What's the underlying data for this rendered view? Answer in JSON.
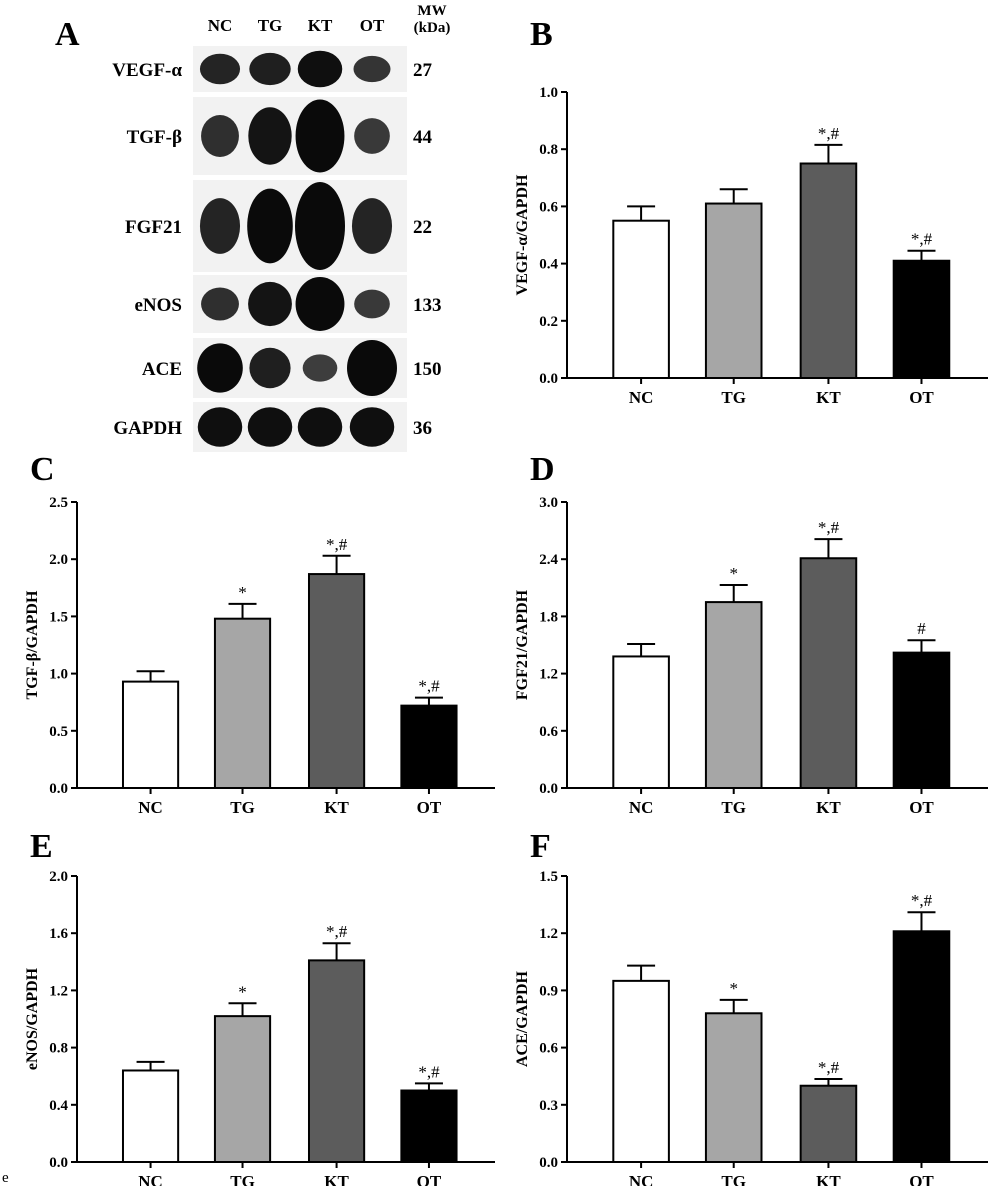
{
  "figure": {
    "stray_text": "e"
  },
  "blot": {
    "panel_label": "A",
    "lanes": [
      "NC",
      "TG",
      "KT",
      "OT"
    ],
    "mw_header": [
      "MW",
      "(kDa)"
    ],
    "colors": {
      "band": "#0a0a0a",
      "background": "#f2f2f2"
    },
    "rows": [
      {
        "protein": "VEGF-α",
        "mw": "27",
        "intensity": [
          0.55,
          0.61,
          0.75,
          0.41
        ]
      },
      {
        "protein": "TGF-β",
        "mw": "44",
        "intensity": [
          0.45,
          0.7,
          0.95,
          0.35
        ]
      },
      {
        "protein": "FGF21",
        "mw": "22",
        "intensity": [
          0.55,
          0.8,
          1.0,
          0.55
        ]
      },
      {
        "protein": "eNOS",
        "mw": "133",
        "intensity": [
          0.45,
          0.72,
          0.95,
          0.35
        ]
      },
      {
        "protein": "ACE",
        "mw": "150",
        "intensity": [
          0.8,
          0.6,
          0.3,
          1.0
        ]
      },
      {
        "protein": "GAPDH",
        "mw": "36",
        "intensity": [
          0.75,
          0.75,
          0.75,
          0.75
        ]
      }
    ]
  },
  "chart_data": [
    {
      "panel": "B",
      "type": "bar",
      "categories": [
        "NC",
        "TG",
        "KT",
        "OT"
      ],
      "values": [
        0.55,
        0.61,
        0.75,
        0.41
      ],
      "errors": [
        0.05,
        0.05,
        0.065,
        0.035
      ],
      "significance": [
        "",
        "",
        "*,#",
        "*,#"
      ],
      "ylabel": "VEGF-α/GAPDH",
      "ylim": [
        0,
        1.0
      ],
      "yticks": [
        "0.0",
        "0.2",
        "0.4",
        "0.6",
        "0.8",
        "1.0"
      ],
      "bar_colors": [
        "#ffffff",
        "#a6a6a6",
        "#5c5c5c",
        "#000000"
      ]
    },
    {
      "panel": "C",
      "type": "bar",
      "categories": [
        "NC",
        "TG",
        "KT",
        "OT"
      ],
      "values": [
        0.93,
        1.48,
        1.87,
        0.72
      ],
      "errors": [
        0.09,
        0.13,
        0.16,
        0.07
      ],
      "significance": [
        "",
        "*",
        "*,#",
        "*,#"
      ],
      "ylabel": "TGF-β/GAPDH",
      "ylim": [
        0,
        2.5
      ],
      "yticks": [
        "0.0",
        "0.5",
        "1.0",
        "1.5",
        "2.0",
        "2.5"
      ],
      "bar_colors": [
        "#ffffff",
        "#a6a6a6",
        "#5c5c5c",
        "#000000"
      ]
    },
    {
      "panel": "D",
      "type": "bar",
      "categories": [
        "NC",
        "TG",
        "KT",
        "OT"
      ],
      "values": [
        1.38,
        1.95,
        2.41,
        1.42
      ],
      "errors": [
        0.13,
        0.18,
        0.2,
        0.13
      ],
      "significance": [
        "",
        "*",
        "*,#",
        "#"
      ],
      "ylabel": "FGF21/GAPDH",
      "ylim": [
        0,
        3.0
      ],
      "yticks": [
        "0.0",
        "0.6",
        "1.2",
        "1.8",
        "2.4",
        "3.0"
      ],
      "bar_colors": [
        "#ffffff",
        "#a6a6a6",
        "#5c5c5c",
        "#000000"
      ]
    },
    {
      "panel": "E",
      "type": "bar",
      "categories": [
        "NC",
        "TG",
        "KT",
        "OT"
      ],
      "values": [
        0.64,
        1.02,
        1.41,
        0.5
      ],
      "errors": [
        0.06,
        0.09,
        0.12,
        0.05
      ],
      "significance": [
        "",
        "*",
        "*,#",
        "*,#"
      ],
      "ylabel": "eNOS/GAPDH",
      "ylim": [
        0,
        2.0
      ],
      "yticks": [
        "0.0",
        "0.4",
        "0.8",
        "1.2",
        "1.6",
        "2.0"
      ],
      "bar_colors": [
        "#ffffff",
        "#a6a6a6",
        "#5c5c5c",
        "#000000"
      ]
    },
    {
      "panel": "F",
      "type": "bar",
      "categories": [
        "NC",
        "TG",
        "KT",
        "OT"
      ],
      "values": [
        0.95,
        0.78,
        0.4,
        1.21
      ],
      "errors": [
        0.08,
        0.07,
        0.035,
        0.1
      ],
      "significance": [
        "",
        "*",
        "*,#",
        "*,#"
      ],
      "ylabel": "ACE/GAPDH",
      "ylim": [
        0,
        1.5
      ],
      "yticks": [
        "0.0",
        "0.3",
        "0.6",
        "0.9",
        "1.2",
        "1.5"
      ],
      "bar_colors": [
        "#ffffff",
        "#a6a6a6",
        "#5c5c5c",
        "#000000"
      ]
    }
  ]
}
